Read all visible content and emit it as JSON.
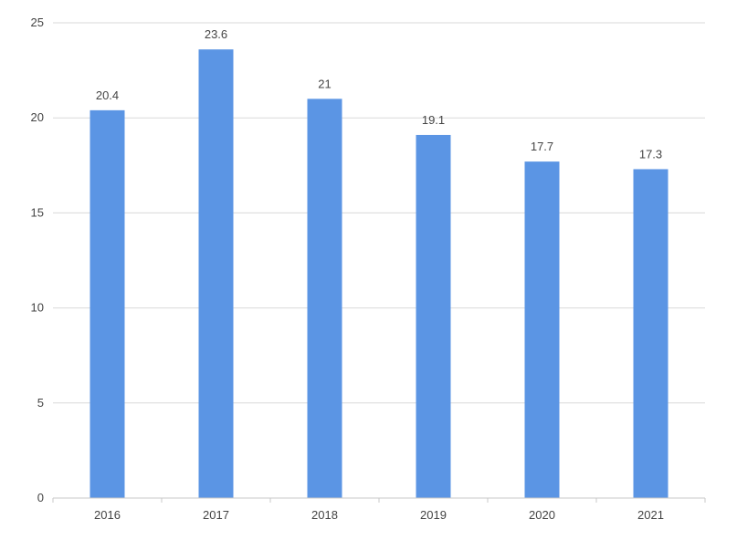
{
  "chart_data": {
    "type": "bar",
    "title": "",
    "xlabel": "",
    "ylabel": "",
    "categories": [
      "2016",
      "2017",
      "2018",
      "2019",
      "2020",
      "2021"
    ],
    "values": [
      20.4,
      23.6,
      21,
      19.1,
      17.7,
      17.3
    ],
    "data_labels": [
      "20.4",
      "23.6",
      "21",
      "19.1",
      "17.7",
      "17.3"
    ],
    "ylim": [
      0,
      25
    ],
    "yticks": [
      0,
      5,
      10,
      15,
      20,
      25
    ],
    "ytick_labels": [
      "0",
      "5",
      "10",
      "15",
      "20",
      "25"
    ],
    "grid": true,
    "legend": "none",
    "bar_color": "#5b95e4"
  }
}
